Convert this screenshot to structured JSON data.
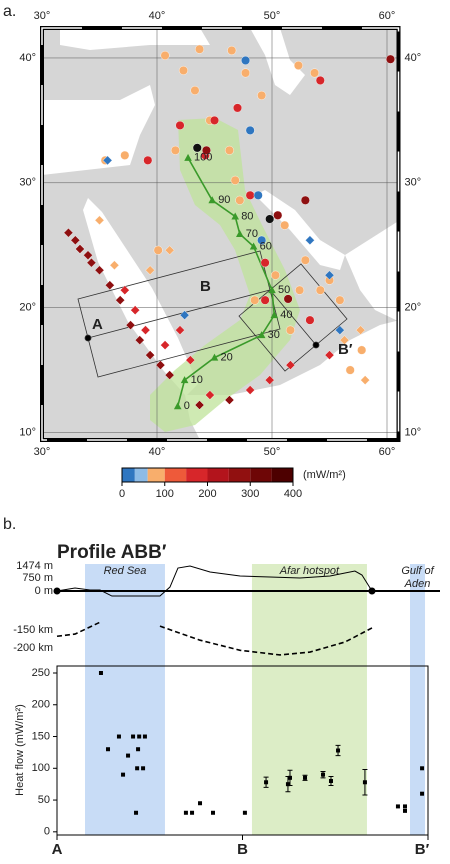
{
  "chart_data": [
    {
      "type": "map",
      "label": "a.",
      "xlim": [
        30,
        61
      ],
      "ylim": [
        9.4,
        42.4
      ],
      "xticks": [
        {
          "value": 30,
          "label": "30°"
        },
        {
          "value": 40,
          "label": "40°"
        },
        {
          "value": 50,
          "label": "50°"
        },
        {
          "value": 60,
          "label": "60°"
        }
      ],
      "yticks": [
        {
          "value": 10,
          "label": "10°"
        },
        {
          "value": 20,
          "label": "20°"
        },
        {
          "value": 30,
          "label": "30°"
        },
        {
          "value": 40,
          "label": "40°"
        }
      ],
      "grid": true,
      "series": [
        {
          "color": "#f8ae6c",
          "marker": "circle",
          "x": [
            40.7,
            43.7,
            46.5,
            47.7,
            42.3,
            43.3,
            44.6,
            49.1,
            52.3,
            53.7,
            46.8,
            47.2,
            51.1,
            52.9,
            54.2,
            55.9,
            55.0,
            52.4,
            50.3,
            35.5,
            37.2,
            46.3,
            56.8,
            57.8,
            51.6,
            41.6,
            48.5,
            40.1
          ],
          "y": [
            40.2,
            40.7,
            40.6,
            38.8,
            39.0,
            37.4,
            35.0,
            37.0,
            39.4,
            38.8,
            30.2,
            28.6,
            26.6,
            23.8,
            21.4,
            20.6,
            22.2,
            21.4,
            22.6,
            31.8,
            32.2,
            32.6,
            15.0,
            16.6,
            18.2,
            32.6,
            20.6,
            24.6
          ]
        },
        {
          "color": "#d7262a",
          "marker": "circle",
          "x": [
            42.0,
            44.2,
            39.2,
            48.1,
            49.4,
            53.3,
            54.2,
            45.0,
            49.4,
            47.0
          ],
          "y": [
            34.6,
            32.2,
            31.8,
            29.0,
            23.6,
            19.0,
            38.2,
            35.0,
            20.6,
            36.0
          ]
        },
        {
          "color": "#8e0f10",
          "marker": "circle",
          "x": [
            44.3,
            60.3,
            51.4,
            50.5,
            52.9
          ],
          "y": [
            32.6,
            39.9,
            20.7,
            27.4,
            28.6
          ]
        },
        {
          "color": "#2f76c0",
          "marker": "circle",
          "x": [
            47.7,
            49.1,
            48.8,
            48.1
          ],
          "y": [
            39.8,
            25.4,
            29.0,
            34.2
          ]
        },
        {
          "color": "#111111",
          "marker": "circle",
          "x": [
            49.8,
            43.5
          ],
          "y": [
            27.1,
            32.8
          ]
        },
        {
          "color": "#8e0f10",
          "marker": "diamond",
          "x": [
            32.3,
            33.3,
            34.3,
            35.0,
            35.9,
            36.8,
            37.7,
            38.5,
            39.4,
            40.3,
            41.1,
            43.7,
            46.3,
            32.9,
            34.0
          ],
          "y": [
            26.0,
            24.7,
            23.6,
            23.0,
            21.8,
            20.6,
            18.6,
            17.4,
            16.2,
            15.4,
            14.6,
            12.2,
            12.6,
            25.4,
            24.2
          ]
        },
        {
          "color": "#d7262a",
          "marker": "diamond",
          "x": [
            37.2,
            38.1,
            39.0,
            40.7,
            42.9,
            44.6,
            48.1,
            49.8,
            51.6,
            55.0,
            42.0
          ],
          "y": [
            21.4,
            19.8,
            18.2,
            17.0,
            15.8,
            13.0,
            13.4,
            14.2,
            15.4,
            16.2,
            18.2
          ]
        },
        {
          "color": "#f8ae6c",
          "marker": "diamond",
          "x": [
            36.3,
            39.4,
            41.1,
            35.0,
            56.3,
            57.7,
            58.1
          ],
          "y": [
            23.4,
            23.0,
            24.6,
            27.0,
            17.4,
            18.2,
            14.2
          ]
        },
        {
          "color": "#2f76c0",
          "marker": "diamond",
          "x": [
            35.7,
            42.4,
            55.0,
            53.3,
            55.9
          ],
          "y": [
            31.8,
            19.4,
            22.6,
            25.4,
            18.2
          ]
        }
      ],
      "track": {
        "color": "#3a9a2a",
        "x": [
          41.8,
          42.4,
          45.0,
          49.1,
          50.2,
          50.0,
          48.4,
          47.2,
          46.8,
          44.8,
          42.7
        ],
        "y": [
          12.1,
          14.2,
          16.0,
          17.8,
          19.4,
          21.4,
          24.9,
          25.9,
          27.3,
          28.6,
          32.0
        ],
        "ages": [
          0,
          10,
          20,
          30,
          40,
          50,
          60,
          70,
          80,
          90,
          100
        ]
      },
      "profile_labels": [
        "A",
        "B",
        "B′"
      ],
      "colorbar": {
        "bounds": [
          0,
          30,
          60,
          100,
          150,
          200,
          250,
          300,
          350,
          400
        ],
        "colors": [
          "#2f76c0",
          "#8dbbe6",
          "#f8ae6c",
          "#ee5a3a",
          "#d7262a",
          "#b3141c",
          "#911010",
          "#6e0606",
          "#4d0000"
        ],
        "ticks": [
          0,
          100,
          200,
          300,
          400
        ],
        "label": "(mW/m²)"
      }
    },
    {
      "type": "line",
      "label": "b.",
      "title": "Profile ABB′",
      "xlim": [
        0,
        2
      ],
      "ylim": [
        -530,
        1830
      ],
      "yticks": [
        {
          "value": 0,
          "label": "0 m"
        },
        {
          "value": 750,
          "label": "750 m"
        },
        {
          "value": 1474,
          "label": "1474 m"
        }
      ],
      "color": "#000000",
      "x": [
        0,
        0.097,
        0.178,
        0.232,
        0.296,
        0.555,
        0.609,
        0.652,
        0.717,
        0.825,
        0.987,
        1.148,
        1.31,
        1.472,
        1.606,
        1.644,
        1.698
      ],
      "values": [
        0,
        177,
        59,
        59,
        -295,
        -295,
        236,
        1356,
        1474,
        1120,
        884,
        825,
        767,
        884,
        1179,
        943,
        0
      ]
    },
    {
      "type": "line",
      "xlim": [
        0,
        2
      ],
      "ylim": [
        -233,
        -108
      ],
      "dashed": true,
      "color": "#000000",
      "yticks": [
        {
          "value": -150,
          "label": "-150 km"
        },
        {
          "value": -200,
          "label": "-200 km"
        }
      ],
      "x": [
        0,
        0.097,
        0.232,
        null,
        0.555,
        0.771,
        0.987,
        1.202,
        1.364,
        1.553,
        1.698
      ],
      "values": [
        -167,
        -161,
        -128,
        null,
        -139,
        -178,
        -206,
        -219,
        -211,
        -183,
        -144
      ]
    },
    {
      "type": "scatter",
      "ylabel": "Heat flow (mW/m²)",
      "xlim": [
        0,
        2
      ],
      "ylim": [
        -5,
        261
      ],
      "yticks": [
        0,
        50,
        100,
        150,
        200,
        250
      ],
      "xticks": [
        {
          "value": 0,
          "label": "A"
        },
        {
          "value": 1,
          "label": "B"
        },
        {
          "value": 2,
          "label": "B′"
        }
      ],
      "regions": [
        {
          "label": [
            "Red Sea"
          ],
          "x0": 0.151,
          "x1": 0.582,
          "color": "#c8dcf6"
        },
        {
          "label": [
            "Afar hotspot"
          ],
          "x0": 1.051,
          "x1": 1.671,
          "color": "#dcedc6"
        },
        {
          "label": [
            "Gulf of",
            "Aden"
          ],
          "x0": 1.903,
          "x1": 1.984,
          "color": "#c8dcf6"
        }
      ],
      "series": [
        {
          "color": "#000000",
          "x": [
            0.237,
            0.275,
            0.334,
            0.356,
            0.383,
            0.41,
            0.426,
            0.432,
            0.437,
            0.443,
            0.464,
            0.474,
            0.695,
            0.728,
            0.771,
            0.841,
            1.013,
            1.127,
            1.245,
            1.256,
            1.337,
            1.434,
            1.477,
            1.515,
            1.66,
            1.838,
            1.876,
            1.876,
            1.968,
            1.968
          ],
          "values": [
            250,
            130,
            150,
            90,
            120,
            150,
            30,
            100,
            130,
            150,
            100,
            150,
            30,
            30,
            45,
            30,
            30,
            78,
            75,
            85,
            85,
            90,
            80,
            128,
            78,
            40,
            33,
            40,
            60,
            100
          ],
          "errors": [
            null,
            null,
            null,
            null,
            null,
            null,
            null,
            null,
            null,
            null,
            null,
            null,
            null,
            null,
            null,
            null,
            null,
            8,
            12,
            12,
            4,
            5,
            7,
            8,
            20,
            null,
            null,
            null,
            null,
            null
          ]
        }
      ]
    }
  ]
}
